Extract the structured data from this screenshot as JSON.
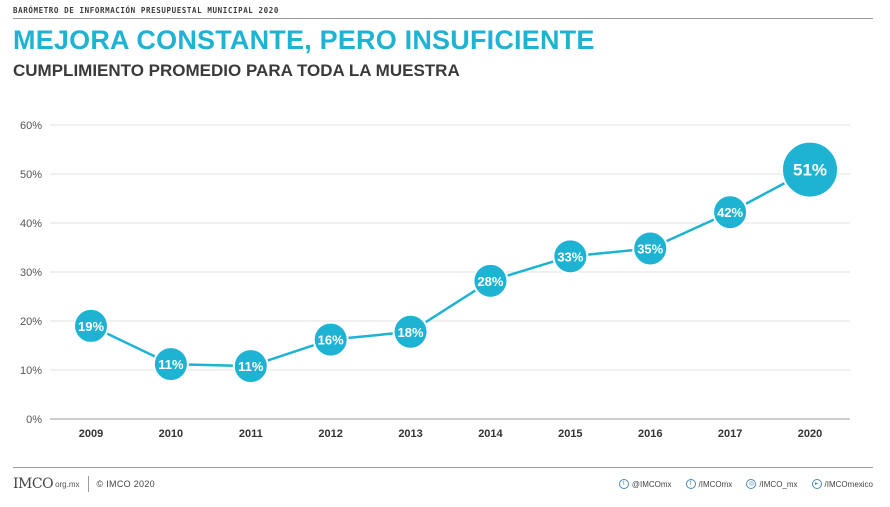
{
  "header": {
    "note": "BARÓMETRO DE INFORMACIÓN PRESUPUESTAL MUNICIPAL 2020",
    "title": "MEJORA CONSTANTE, PERO INSUFICIENTE",
    "subtitle": "CUMPLIMIENTO PROMEDIO PARA TODA LA MUESTRA"
  },
  "chart_data": {
    "type": "line",
    "title": "MEJORA CONSTANTE, PERO INSUFICIENTE",
    "subtitle": "CUMPLIMIENTO PROMEDIO PARA TODA LA MUESTRA",
    "categories": [
      "2009",
      "2010",
      "2011",
      "2012",
      "2013",
      "2014",
      "2015",
      "2016",
      "2017",
      "2020"
    ],
    "values": [
      19,
      11,
      11,
      16,
      18,
      28,
      33,
      35,
      42,
      51
    ],
    "data_labels": [
      "19%",
      "11%",
      "11%",
      "16%",
      "18%",
      "28%",
      "33%",
      "35%",
      "42%",
      "51%"
    ],
    "plotted_values": [
      19,
      11.2,
      10.8,
      16.2,
      17.8,
      28.2,
      33.2,
      34.8,
      42.2,
      50.9
    ],
    "ylim": [
      0,
      60
    ],
    "yticks": [
      "0%",
      "10%",
      "20%",
      "30%",
      "40%",
      "50%",
      "60%"
    ],
    "ytick_values": [
      0,
      10,
      20,
      30,
      40,
      50,
      60
    ],
    "xlabel": "",
    "ylabel": "",
    "grid": true,
    "colors": {
      "line": "#1fb3d3",
      "marker": "#1fb3d3",
      "label": "#ffffff"
    }
  },
  "footer": {
    "logo": "IMCO",
    "logo_domain": "org.mx",
    "copyright": "© IMCO 2020",
    "socials": [
      {
        "icon": "twitter-icon",
        "glyph": "t",
        "label": "@IMCOmx"
      },
      {
        "icon": "facebook-icon",
        "glyph": "f",
        "label": "/IMCOmx"
      },
      {
        "icon": "instagram-icon",
        "glyph": "◎",
        "label": "/IMCO_mx"
      },
      {
        "icon": "youtube-icon",
        "glyph": "▸",
        "label": "/IMCOmexico"
      }
    ]
  }
}
